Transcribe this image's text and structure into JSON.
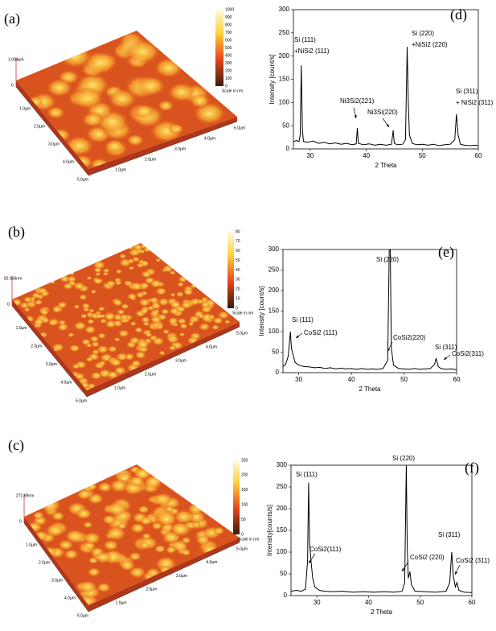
{
  "afm_panels": [
    {
      "label": "(a)",
      "z_label": "1.004µm",
      "origin": "0",
      "colorbar_ticks": [
        1000,
        900,
        800,
        700,
        600,
        500,
        400,
        300,
        200,
        100,
        0
      ],
      "colorbar_caption": "Scale in nm",
      "left_axis_labels": [
        "1.0µm",
        "2.0µm",
        "3.0µm",
        "4.0µm",
        "5.0µm"
      ],
      "right_axis_labels": [
        "1.0µm",
        "2.0µm",
        "3.0µm",
        "4.0µm",
        "5.0µm"
      ]
    },
    {
      "label": "(b)",
      "z_label": "82.956nm",
      "origin": "0",
      "colorbar_ticks": [
        80,
        70,
        60,
        50,
        40,
        30,
        20,
        10,
        0
      ],
      "colorbar_caption": "Scale in nm",
      "left_axis_labels": [
        "1.0µm",
        "2.0µm",
        "3.0µm",
        "4.0µm",
        "5.0µm"
      ],
      "right_axis_labels": [
        "1.0µm",
        "2.0µm",
        "3.0µm",
        "4.0µm",
        "5.0µm"
      ]
    },
    {
      "label": "(c)",
      "z_label": "272.89nm",
      "origin": "0",
      "colorbar_ticks": [
        250,
        200,
        150,
        100,
        50,
        0
      ],
      "colorbar_caption": "Scale in nm",
      "left_axis_labels": [
        "1.0µm",
        "2.0µm",
        "3.0µm",
        "4.0µm",
        "5.0µm"
      ],
      "right_axis_labels": [
        "1.0µm",
        "2.0µm",
        "3.0µm",
        "4.0µm",
        "5.0µm"
      ]
    }
  ],
  "chart_data": [
    {
      "type": "line",
      "title": "(d)",
      "x_label": "2 Theta",
      "y_label": "Intensity [count/s]",
      "color": "#000000",
      "xlim": [
        27,
        60
      ],
      "ylim": [
        0,
        300
      ],
      "xticks": [
        30,
        40,
        50,
        60
      ],
      "yticks": [
        0,
        50,
        100,
        150,
        200,
        250,
        300
      ],
      "x": [
        27,
        27.5,
        28,
        28.2,
        28.4,
        28.6,
        28.8,
        29.5,
        30.5,
        31.5,
        32.5,
        33.5,
        34.5,
        35.5,
        36.5,
        37.5,
        38.2,
        38.4,
        38.6,
        39.5,
        40.5,
        41.5,
        42.5,
        43.5,
        44.5,
        44.8,
        45,
        45.5,
        46.5,
        47,
        47.3,
        47.5,
        47.7,
        48.2,
        49,
        50,
        51,
        52,
        53,
        54,
        55,
        55.8,
        56.1,
        56.4,
        56.8,
        57.5,
        58.5,
        59.5,
        60
      ],
      "values": [
        15,
        18,
        16,
        30,
        180,
        40,
        16,
        14,
        17,
        12,
        14,
        11,
        13,
        10,
        12,
        9,
        11,
        45,
        12,
        9,
        11,
        8,
        10,
        8,
        10,
        40,
        12,
        9,
        10,
        20,
        220,
        100,
        30,
        12,
        9,
        10,
        8,
        10,
        7,
        9,
        10,
        20,
        75,
        30,
        10,
        8,
        7,
        8,
        7
      ],
      "annotations": [
        "Si (111)",
        "+NiSi2 (111)",
        "Ni3Si2(221)",
        "Ni3Si(220)",
        "Si (220)",
        "+NiSi2 (220)",
        "Si (311)",
        "+ NiSi2 (311)"
      ]
    },
    {
      "type": "line",
      "title": "(e)",
      "x_label": "2 Theta",
      "y_label": "Intensity [count/s]",
      "color": "#000000",
      "xlim": [
        27,
        60
      ],
      "ylim": [
        0,
        300
      ],
      "xticks": [
        30,
        40,
        50,
        60
      ],
      "yticks": [
        0,
        50,
        100,
        150,
        200,
        250,
        300
      ],
      "x": [
        27,
        27.5,
        28,
        28.2,
        28.4,
        28.6,
        28.9,
        29.3,
        30,
        31,
        32,
        33,
        34,
        35,
        36,
        37,
        38,
        39,
        40,
        41,
        42,
        43,
        44,
        45,
        46,
        46.9,
        47.2,
        47.4,
        47.6,
        48,
        49,
        50,
        51,
        52,
        53,
        54,
        55,
        55.8,
        56.1,
        56.5,
        57,
        58,
        59,
        60
      ],
      "values": [
        15,
        20,
        40,
        70,
        100,
        60,
        45,
        25,
        18,
        15,
        14,
        12,
        13,
        10,
        12,
        9,
        11,
        9,
        10,
        8,
        10,
        8,
        9,
        8,
        10,
        30,
        300,
        300,
        60,
        18,
        10,
        9,
        8,
        10,
        8,
        9,
        10,
        20,
        35,
        15,
        10,
        8,
        9,
        7
      ],
      "annotations": [
        "Si (111)",
        "CoSi2 (111)",
        "Si (220)",
        "CoSi2(220)",
        "Si (311)",
        "CoSi2(311)"
      ]
    },
    {
      "type": "line",
      "title": "(f)",
      "x_label": "2 Theta",
      "y_label": "Intensity[counts/s]",
      "color": "#000000",
      "xlim": [
        25,
        60
      ],
      "ylim": [
        0,
        300
      ],
      "xticks": [
        30,
        40,
        50,
        60
      ],
      "yticks": [
        0,
        50,
        100,
        150,
        200,
        250,
        300
      ],
      "x": [
        25,
        26,
        27,
        27.8,
        28.2,
        28.4,
        28.6,
        28.9,
        29.2,
        29.6,
        30.5,
        31.5,
        33,
        35,
        37,
        39,
        41,
        43,
        45,
        46.5,
        47,
        47.3,
        47.5,
        47.7,
        48,
        48.3,
        49,
        51,
        53,
        55,
        55.7,
        56.1,
        56.4,
        56.8,
        57.1,
        57.5,
        58.5,
        60
      ],
      "values": [
        10,
        12,
        10,
        15,
        80,
        260,
        120,
        75,
        40,
        20,
        12,
        10,
        9,
        10,
        8,
        9,
        8,
        9,
        8,
        10,
        30,
        300,
        110,
        40,
        55,
        25,
        10,
        9,
        8,
        10,
        30,
        100,
        45,
        20,
        30,
        12,
        8,
        7
      ],
      "annotations": [
        "Si (111)",
        "CoSi2(111)",
        "Si (220)",
        "CoSi2 (220)",
        "Si (311)",
        "CoSi2 (311)"
      ]
    }
  ]
}
